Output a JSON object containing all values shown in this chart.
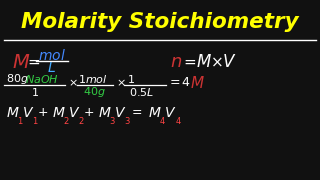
{
  "title": "Molarity Stoichiometry",
  "title_color": "#FFFF00",
  "bg_color": "#111111",
  "line_color": "#FFFFFF",
  "M_color": "#CC3333",
  "mol_color": "#4488FF",
  "L_color": "#44AAFF",
  "n_color": "#CC3333",
  "white": "#FFFFFF",
  "green": "#33CC44",
  "red": "#CC3333",
  "yellow": "#FFFF00"
}
